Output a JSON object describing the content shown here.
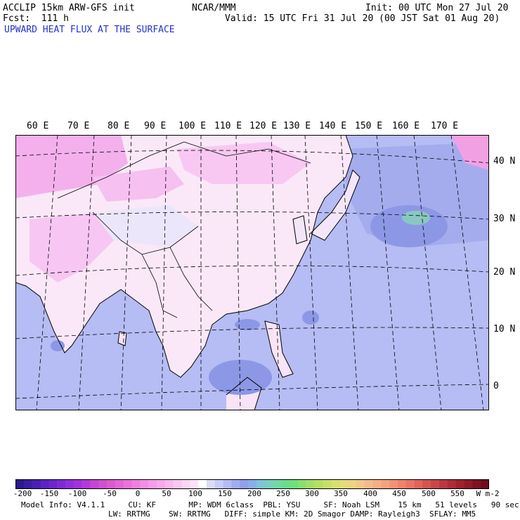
{
  "header": {
    "model": "ACCLIP 15km ARW-GFS init",
    "center": "NCAR/MMM",
    "init": "Init: 00 UTC Mon 27 Jul 20",
    "fcst": "Fcst:  111 h",
    "valid": "Valid: 15 UTC Fri 31 Jul 20 (00 JST Sat 01 Aug 20)",
    "field": "UPWARD HEAT FLUX AT THE SURFACE"
  },
  "map": {
    "lon_labels": [
      "60 E",
      "70 E",
      "80 E",
      "90 E",
      "100 E",
      "110 E",
      "120 E",
      "130 E",
      "140 E",
      "150 E",
      "160 E",
      "170 E"
    ],
    "lat_labels": [
      "40 N",
      "30 N",
      "20 N",
      "10 N",
      "0"
    ]
  },
  "colorbar": {
    "labels": [
      "-200",
      "-150",
      "-100",
      "-50",
      "0",
      "50",
      "100",
      "150",
      "200",
      "250",
      "300",
      "350",
      "400",
      "450",
      "500",
      "550"
    ],
    "unit": "W m-2",
    "colors": [
      "#2a1a8a",
      "#3a1ea0",
      "#4a1fb4",
      "#5c22c4",
      "#6c26cc",
      "#7e2ad4",
      "#902edc",
      "#a232dc",
      "#b43ad8",
      "#c444d4",
      "#d050d0",
      "#dc5ad0",
      "#e466d6",
      "#ec72dc",
      "#f080e0",
      "#f48ee4",
      "#f69ce8",
      "#f8aaec",
      "#f9b8f0",
      "#fac6f2",
      "#fcd4f6",
      "#fde2fa",
      "#ffffff",
      "#dadcf8",
      "#c8ccf8",
      "#b4bcf4",
      "#a0acf0",
      "#8fa0ec",
      "#88b0e8",
      "#80c4d8",
      "#78d0c0",
      "#72d8a8",
      "#6cdc90",
      "#70e078",
      "#88e070",
      "#a0e068",
      "#b4e064",
      "#c8e068",
      "#d8e070",
      "#e4dc78",
      "#ecd480",
      "#f0c888",
      "#f2bc88",
      "#f4b084",
      "#f4a47c",
      "#f29474",
      "#ee846c",
      "#e87464",
      "#e0645a",
      "#d45450",
      "#c84646",
      "#bc383e",
      "#ae2c36",
      "#a0222e",
      "#901a28",
      "#801222",
      "#700c1c"
    ]
  },
  "model_info": {
    "line1": "Model Info: V4.1.1     CU: KF       MP: WDM 6class  PBL: YSU     SF: Noah LSM    15 km   51 levels   90 sec",
    "line2": "LW: RRTMG    SW: RRTMG   DIFF: simple KM: 2D Smagor DAMP: Rayleigh3  SFLAY: MM5"
  }
}
